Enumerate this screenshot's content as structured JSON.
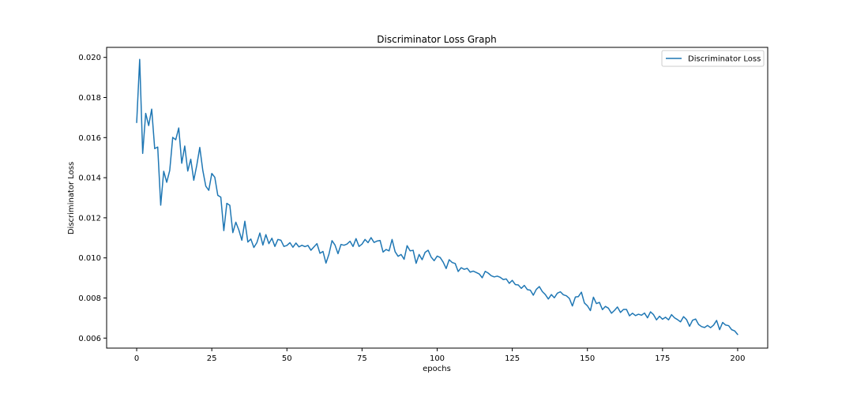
{
  "colors": {
    "series": "#1f77b4",
    "axes": "#000000",
    "legend_border": "#cccccc",
    "background": "#ffffff"
  },
  "chart_data": {
    "type": "line",
    "title": "Discriminator Loss Graph",
    "xlabel": "epochs",
    "ylabel": "Discriminator Loss",
    "xlim": [
      -10,
      210
    ],
    "ylim": [
      0.0055,
      0.0205
    ],
    "xticks": [
      0,
      25,
      50,
      75,
      100,
      125,
      150,
      175,
      200
    ],
    "xtick_labels": [
      "0",
      "25",
      "50",
      "75",
      "100",
      "125",
      "150",
      "175",
      "200"
    ],
    "yticks": [
      0.006,
      0.008,
      0.01,
      0.012,
      0.014,
      0.016,
      0.018,
      0.02
    ],
    "ytick_labels": [
      "0.006",
      "0.008",
      "0.010",
      "0.012",
      "0.014",
      "0.016",
      "0.018",
      "0.020"
    ],
    "grid": false,
    "legend": {
      "position": "upper right",
      "entries": [
        "Discriminator Loss"
      ]
    },
    "series": [
      {
        "name": "Discriminator Loss",
        "color": "#1f77b4",
        "x_start": 0,
        "x_step": 1,
        "values": [
          0.01675,
          0.0199,
          0.01521,
          0.01721,
          0.0166,
          0.01742,
          0.01545,
          0.01553,
          0.01263,
          0.01432,
          0.01377,
          0.01436,
          0.01601,
          0.01589,
          0.01648,
          0.01472,
          0.01558,
          0.01433,
          0.01492,
          0.01387,
          0.01462,
          0.01551,
          0.01437,
          0.01358,
          0.01337,
          0.01421,
          0.01402,
          0.01312,
          0.01303,
          0.01136,
          0.01272,
          0.01262,
          0.01126,
          0.01178,
          0.01139,
          0.01088,
          0.01183,
          0.01079,
          0.01094,
          0.01052,
          0.01076,
          0.01124,
          0.01064,
          0.01116,
          0.01071,
          0.01098,
          0.01057,
          0.01092,
          0.01088,
          0.01057,
          0.01062,
          0.01076,
          0.01053,
          0.01074,
          0.01055,
          0.01063,
          0.01056,
          0.01062,
          0.01038,
          0.01055,
          0.01071,
          0.01023,
          0.01032,
          0.00974,
          0.01019,
          0.01086,
          0.01064,
          0.01021,
          0.01067,
          0.01063,
          0.01069,
          0.01083,
          0.01057,
          0.01096,
          0.01057,
          0.01069,
          0.01092,
          0.01076,
          0.01101,
          0.01077,
          0.01084,
          0.01087,
          0.01029,
          0.01042,
          0.01035,
          0.01092,
          0.01031,
          0.01008,
          0.01017,
          0.00993,
          0.01061,
          0.01035,
          0.01038,
          0.00973,
          0.01017,
          0.00991,
          0.01028,
          0.01038,
          0.01004,
          0.00986,
          0.01009,
          0.01002,
          0.00979,
          0.00947,
          0.00991,
          0.00977,
          0.00972,
          0.00932,
          0.00951,
          0.00943,
          0.00948,
          0.00929,
          0.00934,
          0.00927,
          0.0092,
          0.00901,
          0.00933,
          0.00924,
          0.00911,
          0.00905,
          0.00909,
          0.00903,
          0.00892,
          0.00895,
          0.00873,
          0.00888,
          0.00867,
          0.00865,
          0.00848,
          0.00863,
          0.00842,
          0.00839,
          0.00814,
          0.00843,
          0.00857,
          0.00832,
          0.00817,
          0.00795,
          0.00817,
          0.00801,
          0.00824,
          0.00831,
          0.00816,
          0.00811,
          0.00798,
          0.0076,
          0.00805,
          0.00807,
          0.00829,
          0.00775,
          0.00761,
          0.00737,
          0.00804,
          0.00772,
          0.00778,
          0.00742,
          0.00758,
          0.00749,
          0.00724,
          0.00738,
          0.00755,
          0.00728,
          0.00743,
          0.00743,
          0.00711,
          0.00724,
          0.00712,
          0.00719,
          0.00714,
          0.00725,
          0.00701,
          0.00731,
          0.00717,
          0.00691,
          0.00709,
          0.00694,
          0.00704,
          0.00691,
          0.00717,
          0.00701,
          0.00692,
          0.00681,
          0.00707,
          0.00692,
          0.00659,
          0.00689,
          0.00695,
          0.00668,
          0.00657,
          0.00653,
          0.00663,
          0.00652,
          0.00665,
          0.00688,
          0.00642,
          0.00678,
          0.00665,
          0.00662,
          0.00642,
          0.00636,
          0.00618
        ]
      }
    ]
  }
}
